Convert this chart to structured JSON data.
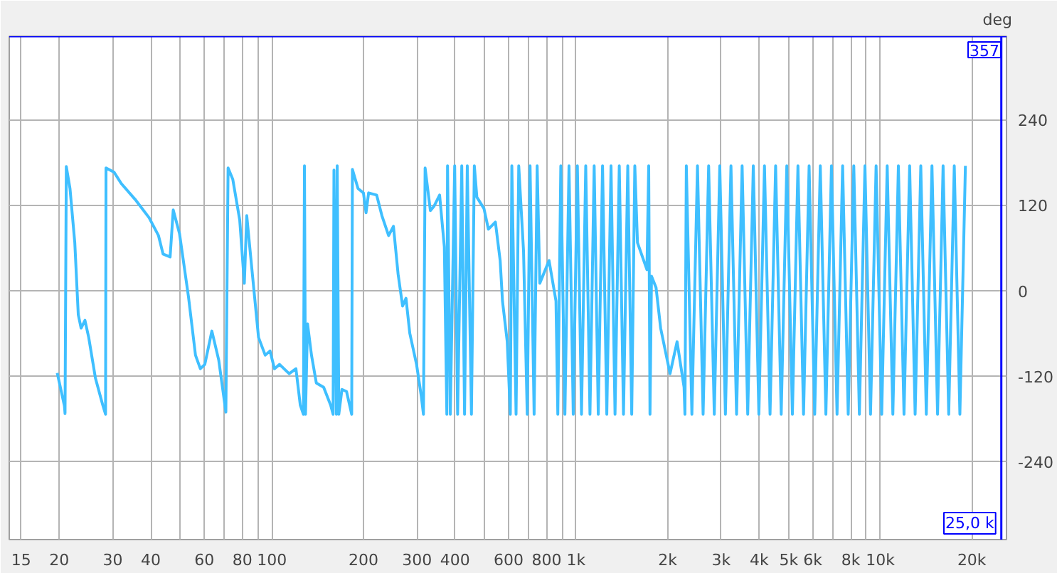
{
  "chart_data": {
    "type": "line",
    "ylabel": "deg",
    "log": "x",
    "grid": true,
    "marker": "none",
    "line_style": "solid",
    "xlim": [
      13.7,
      26000
    ],
    "ylim": [
      -350,
      357
    ],
    "xticks": [
      15,
      20,
      30,
      40,
      {
        "value": 50,
        "label": null
      },
      60,
      {
        "value": 70,
        "label": null
      },
      80,
      {
        "value": 90,
        "label": null
      },
      100,
      200,
      300,
      400,
      {
        "value": 500,
        "label": null
      },
      600,
      {
        "value": 700,
        "label": null
      },
      800,
      {
        "value": 900,
        "label": null
      },
      {
        "value": 1000,
        "label": "1k"
      },
      {
        "value": 2000,
        "label": "2k"
      },
      {
        "value": 3000,
        "label": "3k"
      },
      {
        "value": 4000,
        "label": "4k"
      },
      {
        "value": 5000,
        "label": "5k"
      },
      {
        "value": 6000,
        "label": "6k"
      },
      {
        "value": 7000,
        "label": null
      },
      {
        "value": 8000,
        "label": "8k"
      },
      {
        "value": 9000,
        "label": null
      },
      {
        "value": 10000,
        "label": "10k"
      },
      {
        "value": 20000,
        "label": "20k"
      }
    ],
    "yticks": [
      -240,
      -120,
      0,
      120,
      240
    ],
    "ref_lines": [
      {
        "axis": "y",
        "value": 357,
        "label": "357",
        "color": "#0000ff"
      },
      {
        "axis": "x",
        "value": 25000,
        "label": "25,0 k",
        "color": "#0000ff"
      }
    ],
    "series": [
      {
        "color": "#3fbfff",
        "x": [
          19.7,
          20.8,
          20.9,
          21.1,
          21.7,
          22.5,
          23.1,
          23.6,
          24.3,
          25.0,
          26.3,
          27.8,
          28.4,
          28.5,
          30.3,
          32.0,
          35.5,
          39.5,
          42.4,
          43.9,
          46.3,
          47.4,
          49.7,
          53.2,
          56.1,
          58.2,
          60.2,
          63.5,
          66.9,
          70.6,
          71.8,
          74.4,
          78.4,
          81.2,
          82.7,
          85.7,
          90.4,
          95.1,
          98.6,
          102,
          106,
          114,
          120,
          124,
          127,
          128,
          129,
          131,
          135,
          140,
          148,
          156,
          159,
          160,
          163,
          164,
          166,
          170,
          176,
          183,
          184,
          192,
          200,
          204,
          208,
          221,
          230,
          242,
          251,
          260,
          269,
          276,
          284,
          299,
          310,
          315,
          319,
          332,
          341,
          356,
          369,
          376,
          378,
          386,
          399,
          408,
          421,
          430,
          439,
          453,
          463,
          472,
          498,
          515,
          543,
          563,
          573,
          594,
          608,
          615,
          635,
          648,
          672,
          691,
          706,
          728,
          745,
          760,
          815,
          859,
          871,
          891,
          919,
          948,
          979,
          1010,
          1042,
          1076,
          1111,
          1147,
          1183,
          1222,
          1262,
          1303,
          1343,
          1387,
          1432,
          1479,
          1524,
          1560,
          1592,
          1710,
          1733,
          1750,
          1770,
          1832,
          1897,
          2037,
          2148,
          2265,
          2280,
          2304,
          2403,
          2507,
          2616,
          2728,
          2847,
          2968,
          3097,
          3230,
          3370,
          3515,
          3667,
          3825,
          3990,
          4163,
          4342,
          4529,
          4725,
          4929,
          5142,
          5363,
          5595,
          5836,
          6088,
          6351,
          6626,
          6911,
          7210,
          7521,
          7846,
          8184,
          8538,
          8906,
          9290,
          9690,
          10110,
          10540,
          11000,
          11470,
          11970,
          12490,
          13020,
          13590,
          14170,
          14790,
          15430,
          16090,
          16790,
          17510,
          18270,
          19050
        ],
        "values": [
          -116,
          -162,
          -173,
          174,
          143,
          67,
          -34,
          -53,
          -42,
          -66,
          -123,
          -161,
          -174,
          172,
          166,
          150,
          128,
          102,
          77,
          51,
          47,
          113,
          80,
          -9,
          -91,
          -110,
          -104,
          -57,
          -98,
          -171,
          172,
          156,
          99,
          10,
          105,
          36,
          -66,
          -91,
          -85,
          -110,
          -104,
          -117,
          -110,
          -161,
          -174,
          175,
          -174,
          -47,
          -91,
          -130,
          -136,
          -161,
          -174,
          169,
          -174,
          175,
          -174,
          -139,
          -142,
          -174,
          170,
          143,
          137,
          109,
          137,
          134,
          105,
          77,
          90,
          23,
          -22,
          -11,
          -60,
          -104,
          -149,
          -174,
          172,
          112,
          118,
          134,
          61,
          -174,
          175,
          -174,
          175,
          -174,
          175,
          -174,
          175,
          -174,
          175,
          131,
          115,
          86,
          96,
          42,
          -15,
          -72,
          -174,
          175,
          -174,
          175,
          55,
          -174,
          175,
          -174,
          175,
          10,
          42,
          -15,
          -174,
          175,
          -174,
          175,
          -174,
          175,
          -174,
          175,
          -174,
          175,
          -174,
          175,
          -174,
          175,
          -174,
          175,
          -174,
          175,
          -174,
          175,
          67,
          29,
          175,
          -174,
          20,
          4,
          -53,
          -117,
          -72,
          -136,
          -174,
          175,
          -174,
          175,
          -174,
          175,
          -174,
          175,
          -174,
          175,
          -174,
          175,
          -174,
          175,
          -174,
          175,
          -174,
          175,
          -174,
          175,
          -174,
          175,
          -174,
          175,
          -174,
          175,
          -174,
          175,
          -174,
          175,
          -174,
          175,
          -174,
          175,
          -174,
          175,
          -174,
          175,
          -174,
          175,
          -174,
          175,
          -174,
          175,
          -174,
          175,
          -174,
          175,
          -174,
          175,
          -174,
          175
        ]
      }
    ]
  }
}
